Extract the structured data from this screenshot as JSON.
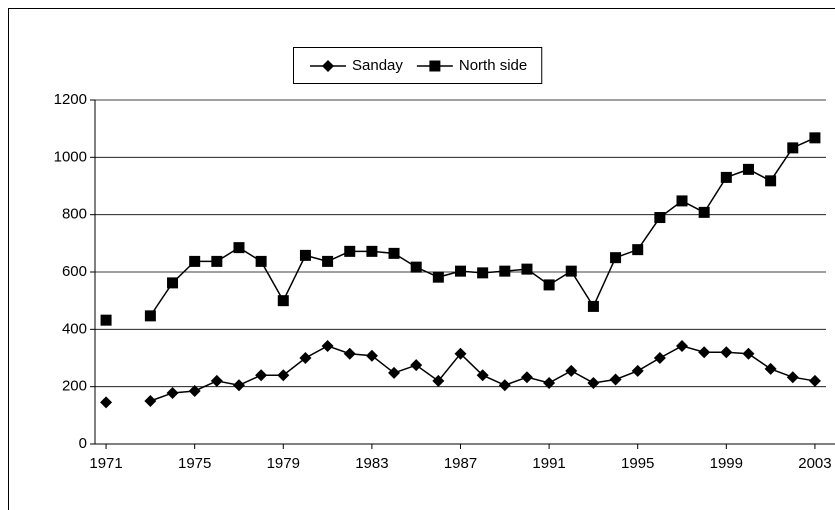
{
  "chart_data": {
    "type": "line",
    "x": [
      1971,
      1972,
      1973,
      1974,
      1975,
      1976,
      1977,
      1978,
      1979,
      1980,
      1981,
      1982,
      1983,
      1984,
      1985,
      1986,
      1987,
      1988,
      1989,
      1990,
      1991,
      1992,
      1993,
      1994,
      1995,
      1996,
      1997,
      1998,
      1999,
      2000,
      2001,
      2002,
      2003
    ],
    "series": [
      {
        "name": "Sanday",
        "color": "#000000",
        "marker": "diamond",
        "values": [
          145,
          null,
          150,
          178,
          185,
          220,
          205,
          240,
          240,
          300,
          342,
          315,
          308,
          248,
          275,
          220,
          315,
          240,
          205,
          233,
          213,
          255,
          213,
          225,
          255,
          300,
          342,
          320,
          320,
          315,
          262,
          233,
          220
        ]
      },
      {
        "name": "North side",
        "color": "#000000",
        "marker": "square",
        "values": [
          432,
          null,
          447,
          562,
          637,
          637,
          685,
          637,
          500,
          658,
          637,
          672,
          672,
          665,
          617,
          582,
          603,
          597,
          603,
          610,
          555,
          603,
          480,
          650,
          678,
          790,
          848,
          808,
          930,
          958,
          918,
          1033,
          1068
        ]
      }
    ],
    "xlim": [
      1970.5,
      2003.5
    ],
    "xticks": [
      1971,
      1975,
      1979,
      1983,
      1987,
      1991,
      1995,
      1999,
      2003
    ],
    "ylim": [
      0,
      1200
    ],
    "yticks": [
      0,
      200,
      400,
      600,
      800,
      1000,
      1200
    ],
    "grid": true,
    "legend": "top"
  }
}
